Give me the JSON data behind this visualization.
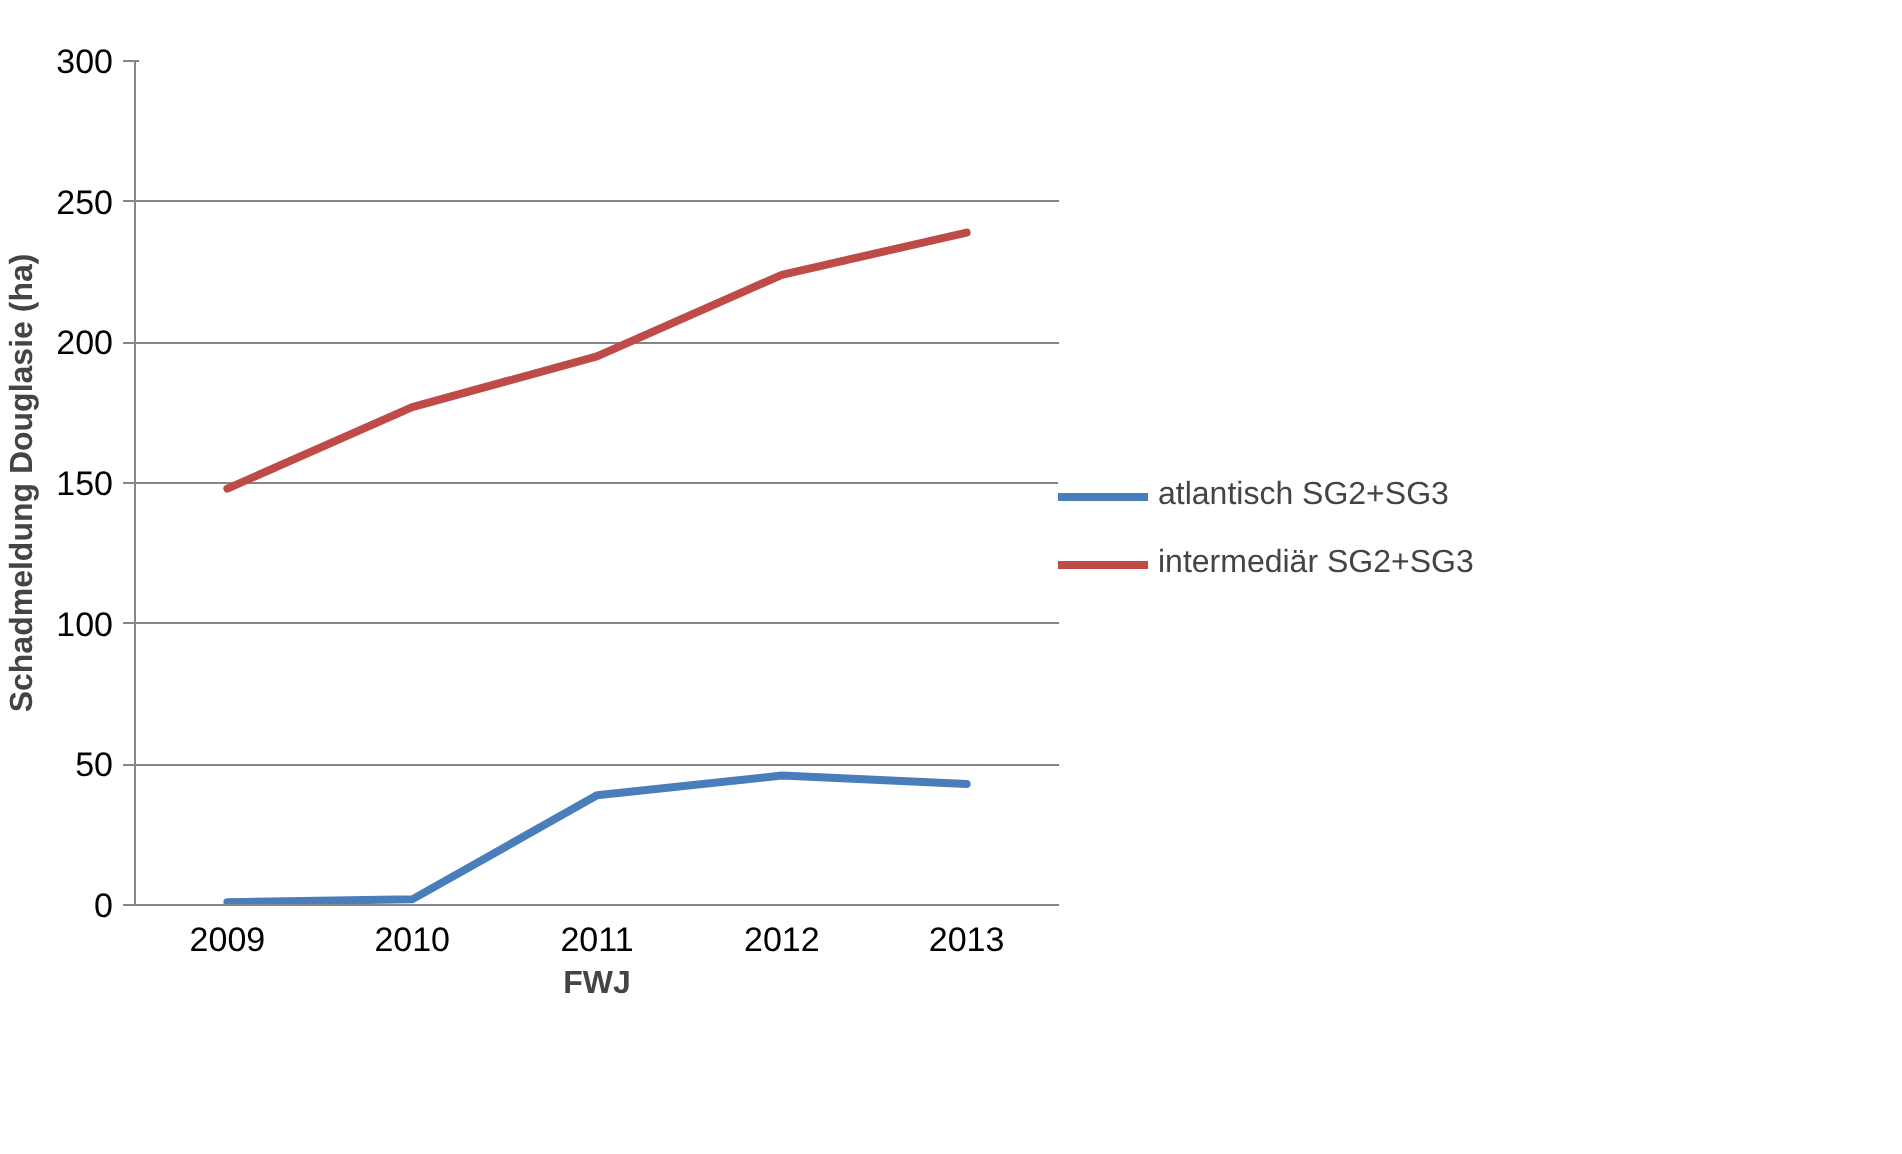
{
  "chart_data": {
    "type": "line",
    "xlabel": "FWJ",
    "ylabel": "Schadmeldung Douglasie (ha)",
    "categories": [
      "2009",
      "2010",
      "2011",
      "2012",
      "2013"
    ],
    "series": [
      {
        "name": "atlantisch SG2+SG3",
        "color": "#4a7ebb",
        "values": [
          1,
          2,
          39,
          46,
          43
        ]
      },
      {
        "name": "intermediär SG2+SG3",
        "color": "#be4b48",
        "values": [
          148,
          177,
          195,
          224,
          239
        ]
      }
    ],
    "ylim": [
      0,
      300
    ],
    "yticks": [
      0,
      50,
      100,
      150,
      200,
      250,
      300
    ],
    "grid": "y",
    "legend": "right",
    "marker": "none",
    "line_style": "solid"
  }
}
